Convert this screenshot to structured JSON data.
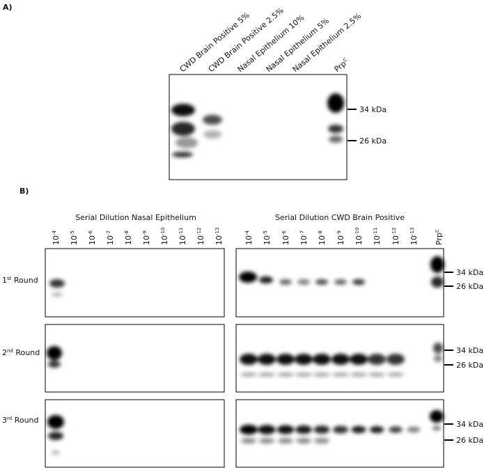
{
  "panel_a": {
    "label": "A)",
    "lanes": [
      {
        "text": "CWD Brain Positive 5%"
      },
      {
        "text": "CWD Brain Positive 2.5%"
      },
      {
        "text": "Nasal Epithelium 10%"
      },
      {
        "text": "Nasal Epithelium 5%"
      },
      {
        "text": "Nasal Epithelium 2.5%"
      },
      {
        "text": "Prp",
        "sup": "C"
      }
    ],
    "markers": [
      "34 kDa",
      "26 kDa"
    ]
  },
  "panel_b": {
    "label": "B)",
    "groups": [
      {
        "title": "Serial Dilution Nasal Epithelium",
        "lanes": [
          {
            "text": "10",
            "sup": "-4"
          },
          {
            "text": "10",
            "sup": "-5"
          },
          {
            "text": "10",
            "sup": "-6"
          },
          {
            "text": "10",
            "sup": "-7"
          },
          {
            "text": "10",
            "sup": "-8"
          },
          {
            "text": "10",
            "sup": "-9"
          },
          {
            "text": "10",
            "sup": "-10"
          },
          {
            "text": "10",
            "sup": "-11"
          },
          {
            "text": "10",
            "sup": "-12"
          },
          {
            "text": "10",
            "sup": "-13"
          }
        ]
      },
      {
        "title": "Serial Dilution CWD Brain Positive",
        "lanes": [
          {
            "text": "10",
            "sup": "-4"
          },
          {
            "text": "10",
            "sup": "-5"
          },
          {
            "text": "10",
            "sup": "-6"
          },
          {
            "text": "10",
            "sup": "-7"
          },
          {
            "text": "10",
            "sup": "-8"
          },
          {
            "text": "10",
            "sup": "-9"
          },
          {
            "text": "10",
            "sup": "-10"
          },
          {
            "text": "10",
            "sup": "-11"
          },
          {
            "text": "10",
            "sup": "-12"
          },
          {
            "text": "10",
            "sup": "-13"
          },
          {
            "text": "Prp",
            "sup": "C"
          }
        ]
      }
    ],
    "rounds": [
      {
        "text": "1",
        "sup": "st",
        "rest": " Round"
      },
      {
        "text": "2",
        "sup": "nd",
        "rest": " Round"
      },
      {
        "text": "3",
        "sup": "rd",
        "rest": " Round"
      }
    ],
    "markers": [
      "34 kDa",
      "26 kDa"
    ]
  }
}
